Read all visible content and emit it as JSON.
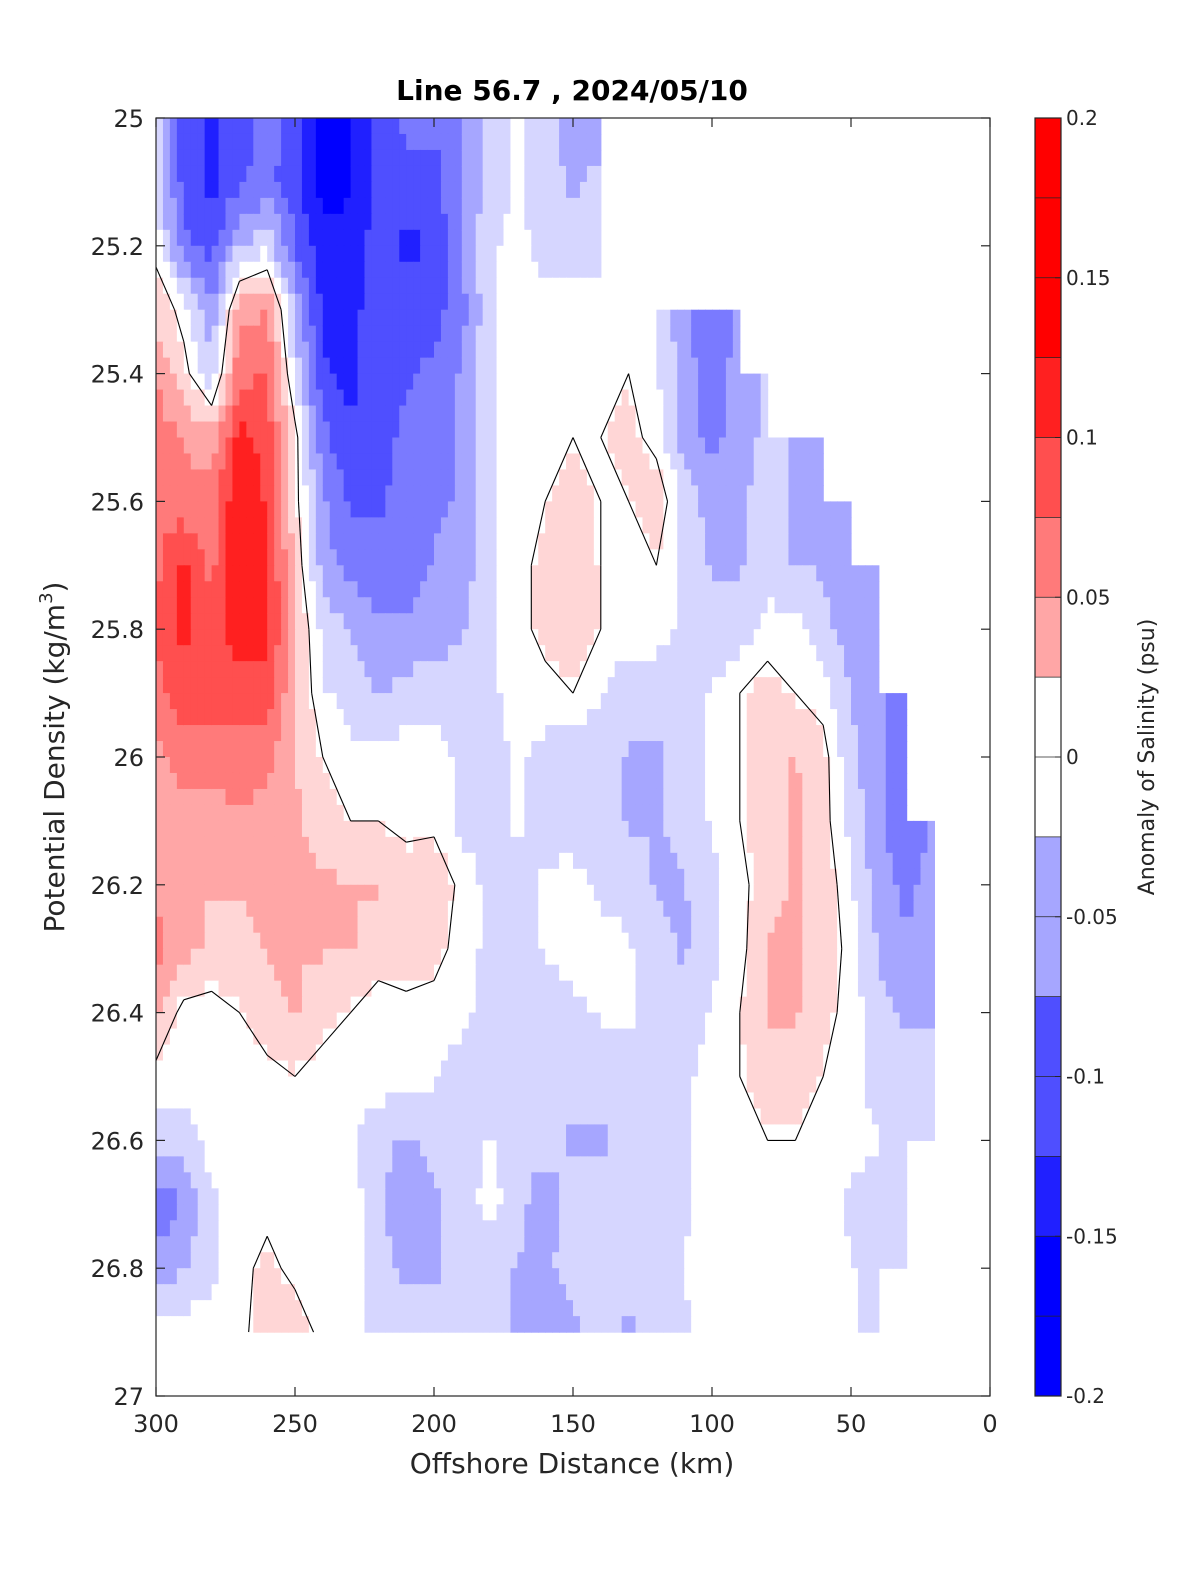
{
  "chart_data": {
    "type": "heatmap",
    "title": "Line 56.7 , 2024/05/10",
    "xlabel": "Offshore Distance (km)",
    "ylabel_main": "Potential Density (kg/m",
    "ylabel_sup": "3",
    "ylabel_close": ")",
    "colorbar_label": "Anomaly of Salinity (psu)",
    "xlim": [
      300,
      0
    ],
    "ylim": [
      25,
      27
    ],
    "y_reversed": true,
    "x_reversed": true,
    "x_ticks": [
      "300",
      "250",
      "200",
      "150",
      "100",
      "50",
      "0"
    ],
    "y_ticks": [
      "25",
      "25.2",
      "25.4",
      "25.6",
      "25.8",
      "26",
      "26.2",
      "26.4",
      "26.6",
      "26.8",
      "27"
    ],
    "colorbar_ticks": [
      "0.2",
      "0.15",
      "0.1",
      "0.05",
      "0",
      "-0.05",
      "-0.1",
      "-0.15",
      "-0.2"
    ],
    "colorbar_range": [
      -0.2,
      0.2
    ],
    "contour_step": 0.025,
    "zero_contour_drawn": true,
    "grid": false,
    "x": [
      300,
      290,
      280,
      270,
      260,
      250,
      240,
      230,
      220,
      210,
      200,
      190,
      180,
      170,
      160,
      150,
      140,
      130,
      120,
      110,
      100,
      90,
      80,
      70,
      60,
      50,
      40,
      30,
      20,
      10
    ],
    "y": [
      25.0,
      25.1,
      25.2,
      25.3,
      25.4,
      25.5,
      25.6,
      25.7,
      25.8,
      25.9,
      26.0,
      26.1,
      26.2,
      26.3,
      26.4,
      26.5,
      26.6,
      26.7,
      26.8,
      26.9
    ],
    "z": [
      [
        -0.02,
        -0.1,
        -0.12,
        -0.1,
        -0.08,
        -0.1,
        -0.16,
        -0.14,
        -0.1,
        -0.08,
        -0.08,
        -0.06,
        -0.03,
        -0.01,
        -0.02,
        -0.06,
        -0.05,
        null,
        null,
        null,
        null,
        null,
        null,
        null,
        null,
        null,
        null,
        null,
        null,
        null
      ],
      [
        -0.02,
        -0.1,
        -0.12,
        -0.09,
        -0.08,
        -0.1,
        -0.15,
        -0.14,
        -0.1,
        -0.1,
        -0.1,
        -0.06,
        -0.03,
        -0.01,
        -0.03,
        -0.04,
        -0.03,
        null,
        null,
        null,
        null,
        null,
        null,
        null,
        null,
        null,
        null,
        null,
        null,
        null
      ],
      [
        0.0,
        -0.08,
        -0.1,
        -0.04,
        -0.02,
        -0.09,
        -0.13,
        -0.13,
        -0.1,
        -0.12,
        -0.11,
        -0.06,
        -0.02,
        0.0,
        -0.03,
        -0.03,
        -0.02,
        null,
        null,
        null,
        null,
        null,
        null,
        null,
        null,
        null,
        null,
        null,
        null,
        null
      ],
      [
        0.03,
        0.0,
        -0.06,
        0.05,
        0.06,
        -0.04,
        -0.12,
        -0.12,
        -0.1,
        -0.1,
        -0.1,
        -0.07,
        -0.02,
        0.0,
        0.0,
        0.0,
        0.0,
        0.01,
        -0.01,
        -0.06,
        -0.09,
        -0.06,
        null,
        null,
        null,
        null,
        null,
        null,
        null,
        null
      ],
      [
        0.06,
        0.02,
        -0.03,
        0.08,
        0.09,
        -0.02,
        -0.11,
        -0.12,
        -0.1,
        -0.09,
        -0.08,
        -0.06,
        -0.02,
        0.0,
        0.0,
        0.01,
        0.01,
        0.01,
        -0.01,
        -0.05,
        -0.08,
        -0.05,
        -0.03,
        null,
        null,
        null,
        null,
        null,
        null,
        null
      ],
      [
        0.08,
        0.06,
        0.05,
        0.12,
        0.1,
        0.02,
        -0.08,
        -0.11,
        -0.1,
        -0.08,
        -0.07,
        -0.06,
        -0.02,
        0.0,
        0.0,
        0.01,
        0.01,
        0.02,
        0.0,
        -0.05,
        -0.07,
        -0.05,
        -0.03,
        -0.04,
        -0.06,
        null,
        null,
        null,
        null,
        null
      ],
      [
        0.08,
        0.07,
        0.07,
        0.14,
        0.11,
        0.02,
        -0.06,
        -0.09,
        -0.09,
        -0.08,
        -0.07,
        -0.06,
        -0.02,
        0.0,
        0.01,
        0.02,
        0.01,
        0.01,
        0.03,
        -0.02,
        -0.05,
        -0.04,
        -0.03,
        -0.04,
        -0.05,
        -0.05,
        null,
        null,
        null,
        null
      ],
      [
        0.08,
        0.12,
        0.08,
        0.14,
        0.12,
        0.03,
        -0.05,
        -0.07,
        -0.08,
        -0.08,
        -0.06,
        -0.05,
        -0.02,
        0.0,
        0.02,
        0.03,
        0.01,
        0.0,
        0.01,
        -0.02,
        -0.04,
        -0.04,
        -0.03,
        -0.04,
        -0.04,
        -0.05,
        -0.06,
        null,
        null,
        null
      ],
      [
        0.09,
        0.12,
        0.1,
        0.13,
        0.12,
        0.04,
        -0.02,
        -0.04,
        -0.06,
        -0.06,
        -0.05,
        -0.04,
        -0.02,
        0.0,
        0.02,
        0.03,
        0.01,
        0.0,
        0.0,
        -0.02,
        -0.03,
        -0.03,
        0.0,
        0.0,
        -0.03,
        -0.05,
        -0.06,
        null,
        null,
        null
      ],
      [
        0.08,
        0.1,
        0.1,
        0.1,
        0.1,
        0.04,
        -0.01,
        -0.02,
        -0.04,
        -0.03,
        -0.02,
        -0.03,
        -0.02,
        0.0,
        0.0,
        0.01,
        -0.01,
        -0.03,
        -0.03,
        -0.03,
        -0.01,
        0.01,
        0.02,
        0.01,
        0.0,
        -0.04,
        -0.06,
        -0.07,
        null,
        null
      ],
      [
        0.05,
        0.08,
        0.07,
        0.08,
        0.07,
        0.04,
        0.01,
        -0.01,
        0.0,
        0.0,
        0.0,
        -0.02,
        -0.02,
        -0.01,
        -0.02,
        -0.03,
        -0.03,
        -0.04,
        -0.04,
        -0.03,
        -0.01,
        0.01,
        0.02,
        0.04,
        0.02,
        -0.03,
        -0.06,
        -0.07,
        null,
        null
      ],
      [
        0.04,
        0.05,
        0.05,
        0.06,
        0.05,
        0.04,
        0.03,
        0.01,
        0.01,
        0.0,
        0.0,
        -0.02,
        -0.02,
        -0.01,
        -0.02,
        -0.03,
        -0.03,
        -0.04,
        -0.04,
        -0.03,
        -0.01,
        0.01,
        0.02,
        0.04,
        0.02,
        -0.02,
        -0.06,
        -0.08,
        -0.06,
        null
      ],
      [
        0.06,
        0.04,
        0.04,
        0.04,
        0.04,
        0.04,
        0.04,
        0.04,
        0.04,
        0.03,
        0.04,
        0.0,
        -0.02,
        -0.02,
        -0.01,
        0.0,
        -0.02,
        -0.02,
        -0.04,
        -0.04,
        -0.02,
        0.0,
        0.03,
        0.04,
        0.03,
        -0.01,
        -0.05,
        -0.07,
        -0.05,
        null
      ],
      [
        0.07,
        0.05,
        0.03,
        0.03,
        0.04,
        0.04,
        0.04,
        0.04,
        0.02,
        0.03,
        0.02,
        0.0,
        -0.02,
        -0.03,
        -0.01,
        0.0,
        0.0,
        -0.01,
        -0.03,
        -0.04,
        -0.02,
        0.0,
        0.04,
        0.04,
        0.03,
        0.0,
        -0.04,
        -0.06,
        -0.04,
        null
      ],
      [
        0.04,
        0.0,
        0.0,
        0.01,
        0.03,
        0.04,
        0.02,
        0.01,
        0.0,
        0.0,
        0.0,
        0.0,
        -0.03,
        -0.03,
        -0.03,
        -0.02,
        -0.01,
        -0.01,
        -0.02,
        -0.03,
        -0.01,
        0.01,
        0.04,
        0.04,
        0.02,
        0.0,
        -0.03,
        -0.04,
        -0.04,
        null
      ],
      [
        0.0,
        0.0,
        0.0,
        0.0,
        0.0,
        0.01,
        0.0,
        0.0,
        0.0,
        0.0,
        -0.01,
        -0.03,
        -0.03,
        -0.03,
        -0.03,
        -0.03,
        -0.03,
        -0.02,
        -0.02,
        -0.02,
        0.0,
        0.01,
        0.02,
        0.02,
        0.01,
        0.0,
        -0.03,
        -0.03,
        -0.03,
        null
      ],
      [
        -0.03,
        -0.03,
        0.0,
        0.0,
        0.0,
        0.0,
        0.0,
        -0.01,
        -0.03,
        -0.04,
        -0.03,
        -0.03,
        -0.01,
        -0.03,
        -0.03,
        -0.04,
        -0.04,
        -0.03,
        -0.03,
        -0.02,
        0.0,
        0.01,
        0.01,
        0.01,
        0.01,
        0.0,
        -0.01,
        -0.02,
        -0.02,
        null
      ],
      [
        -0.08,
        -0.06,
        -0.02,
        0.0,
        0.0,
        0.0,
        0.0,
        0.0,
        -0.03,
        -0.06,
        -0.04,
        -0.03,
        0.0,
        -0.03,
        -0.05,
        -0.03,
        -0.03,
        -0.03,
        -0.03,
        -0.02,
        0.0,
        0.0,
        0.01,
        0.0,
        0.0,
        -0.02,
        -0.03,
        -0.02,
        null,
        null
      ],
      [
        -0.05,
        -0.04,
        -0.02,
        0.0,
        0.02,
        0.0,
        0.0,
        0.0,
        -0.03,
        -0.04,
        -0.04,
        -0.03,
        -0.03,
        -0.04,
        -0.04,
        -0.03,
        -0.03,
        -0.03,
        -0.03,
        -0.01,
        0.0,
        0.0,
        0.0,
        0.0,
        0.0,
        -0.01,
        -0.03,
        -0.03,
        null,
        null
      ],
      [
        0.0,
        0.0,
        0.0,
        0.0,
        0.03,
        0.03,
        0.0,
        0.0,
        -0.03,
        -0.03,
        -0.03,
        -0.03,
        -0.03,
        -0.04,
        -0.06,
        -0.04,
        -0.03,
        -0.04,
        -0.03,
        -0.02,
        0.0,
        0.0,
        0.0,
        0.0,
        0.0,
        -0.01,
        -0.02,
        null,
        null,
        null
      ]
    ]
  }
}
